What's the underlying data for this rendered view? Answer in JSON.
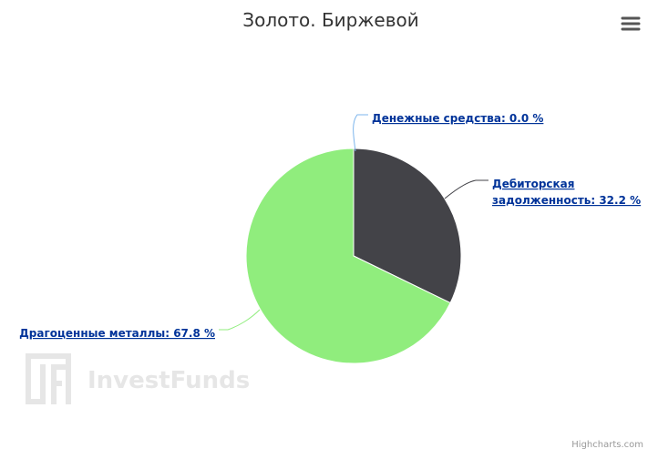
{
  "colors": {
    "background": "#ffffff",
    "title": "#333333",
    "label_link": "#003399",
    "watermark": "#e6e6e6",
    "menu_icon": "#555555"
  },
  "menu_icon": "hamburger-menu-icon",
  "watermark": {
    "text": "InvestFunds",
    "logo": "IF"
  },
  "credits": "Highcharts.com",
  "chart_data": {
    "type": "pie",
    "title": "Золото. Биржевой",
    "slices": [
      {
        "name": "Денежные средства",
        "value": 0.0,
        "label": "Денежные средства: 0.0 %",
        "color": "#7cb5ec"
      },
      {
        "name": "Дебиторская задолженность",
        "value": 32.2,
        "label_lines": [
          "Дебиторская",
          "задолженность: 32.2 %"
        ],
        "color": "#434348"
      },
      {
        "name": "Драгоценные металлы",
        "value": 67.8,
        "label": "Драгоценные металлы: 67.8 %",
        "color": "#90ed7d"
      }
    ]
  }
}
